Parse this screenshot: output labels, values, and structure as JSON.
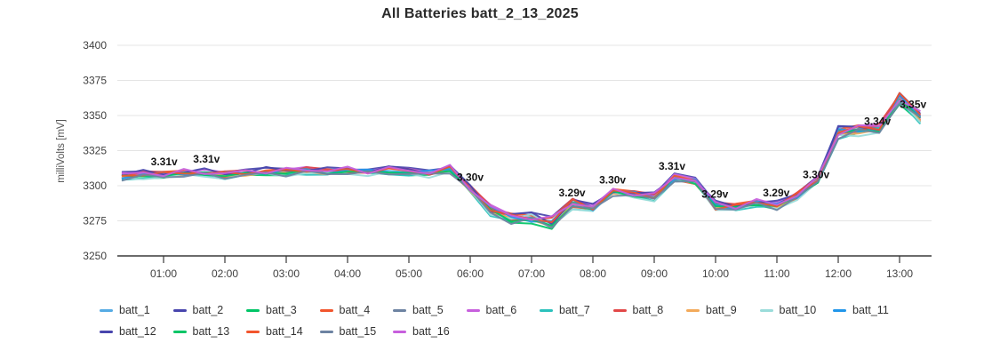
{
  "title": "All Batteries batt_2_13_2025",
  "y_axis": {
    "label": "milliVolts [mV]",
    "ticks": [
      3250,
      3275,
      3300,
      3325,
      3350,
      3375,
      3400
    ],
    "min": 3250,
    "max": 3400
  },
  "x_axis": {
    "ticks": [
      "01:00",
      "02:00",
      "03:00",
      "04:00",
      "05:00",
      "06:00",
      "07:00",
      "08:00",
      "09:00",
      "10:00",
      "11:00",
      "12:00",
      "13:00"
    ]
  },
  "chart_data": {
    "type": "line",
    "title": "All Batteries batt_2_13_2025",
    "xlabel": "",
    "ylabel": "milliVolts [mV]",
    "ylim": [
      3250,
      3400
    ],
    "grid": true,
    "legend_position": "bottom",
    "x_hours": [
      0.33,
      0.67,
      1.0,
      1.33,
      1.67,
      2.0,
      2.33,
      2.67,
      3.0,
      3.33,
      3.67,
      4.0,
      4.33,
      4.67,
      5.0,
      5.33,
      5.67,
      6.0,
      6.33,
      6.67,
      7.0,
      7.33,
      7.67,
      8.0,
      8.33,
      8.67,
      9.0,
      9.33,
      9.67,
      10.0,
      10.33,
      10.67,
      11.0,
      11.33,
      11.67,
      12.0,
      12.33,
      12.67,
      13.0,
      13.33
    ],
    "base_values_mV": [
      3307,
      3308,
      3308,
      3309,
      3309,
      3308,
      3309,
      3310,
      3310,
      3311,
      3310,
      3311,
      3310,
      3311,
      3310,
      3309,
      3312,
      3298,
      3283,
      3277,
      3277,
      3274,
      3288,
      3284,
      3296,
      3294,
      3292,
      3306,
      3303,
      3286,
      3285,
      3288,
      3286,
      3293,
      3304,
      3338,
      3340,
      3341,
      3362,
      3349
    ],
    "series_spread_mV": 4,
    "series": [
      {
        "name": "batt_1",
        "color": "#55abe4",
        "delta_mV": 0.5
      },
      {
        "name": "batt_2",
        "color": "#4845ad",
        "delta_mV": 1.5
      },
      {
        "name": "batt_3",
        "color": "#00c566",
        "delta_mV": -1.0
      },
      {
        "name": "batt_4",
        "color": "#f2552d",
        "delta_mV": 0.0
      },
      {
        "name": "batt_5",
        "color": "#6d83a2",
        "delta_mV": -0.5
      },
      {
        "name": "batt_6",
        "color": "#c75fdd",
        "delta_mV": 1.0
      },
      {
        "name": "batt_7",
        "color": "#2bc1bc",
        "delta_mV": -1.5
      },
      {
        "name": "batt_8",
        "color": "#e24848",
        "delta_mV": 0.5
      },
      {
        "name": "batt_9",
        "color": "#f3aa5a",
        "delta_mV": -1.0
      },
      {
        "name": "batt_10",
        "color": "#9adcda",
        "delta_mV": -2.0
      },
      {
        "name": "batt_11",
        "color": "#2196ea",
        "delta_mV": 0.0
      },
      {
        "name": "batt_12",
        "color": "#4845ad",
        "delta_mV": 1.2
      },
      {
        "name": "batt_13",
        "color": "#00c566",
        "delta_mV": -0.8
      },
      {
        "name": "batt_14",
        "color": "#f2552d",
        "delta_mV": 0.3
      },
      {
        "name": "batt_15",
        "color": "#6d83a2",
        "delta_mV": -1.6
      },
      {
        "name": "batt_16",
        "color": "#c75fdd",
        "delta_mV": 0.8
      }
    ],
    "annotations": [
      {
        "text": "3.31v",
        "t": 1.01,
        "mv": 3317
      },
      {
        "text": "3.31v",
        "t": 1.7,
        "mv": 3319
      },
      {
        "text": "3.30v",
        "t": 6.0,
        "mv": 3306
      },
      {
        "text": "3.29v",
        "t": 7.66,
        "mv": 3295
      },
      {
        "text": "3.30v",
        "t": 8.32,
        "mv": 3304
      },
      {
        "text": "3.31v",
        "t": 9.29,
        "mv": 3314
      },
      {
        "text": "3.29v",
        "t": 9.99,
        "mv": 3294
      },
      {
        "text": "3.29v",
        "t": 10.99,
        "mv": 3295
      },
      {
        "text": "3.30v",
        "t": 11.64,
        "mv": 3308
      },
      {
        "text": "3.34v",
        "t": 12.64,
        "mv": 3346
      },
      {
        "text": "3.35v",
        "t": 13.22,
        "mv": 3358
      }
    ]
  }
}
